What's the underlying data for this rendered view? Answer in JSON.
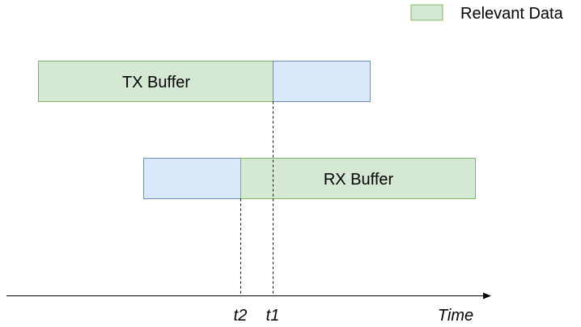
{
  "legend": {
    "label": "Relevant Data",
    "color": "#d5e8d4",
    "stroke": "#82b366"
  },
  "buffers": {
    "tx": {
      "label": "TX Buffer"
    },
    "rx": {
      "label": "RX Buffer"
    }
  },
  "colors": {
    "relevant_fill": "#d5e8d4",
    "relevant_stroke": "#82b366",
    "other_fill": "#dae8fc",
    "other_stroke": "#6c8ebf"
  },
  "axis": {
    "label": "Time",
    "markers": [
      "t2",
      "t1"
    ]
  }
}
